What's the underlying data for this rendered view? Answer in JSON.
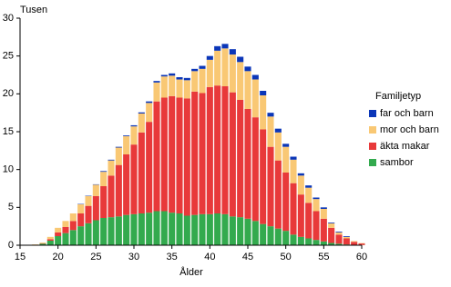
{
  "chart_data": {
    "type": "stacked-bar",
    "y_label": "Tusen",
    "x_label": "Ålder",
    "legend_title": "Familjetyp",
    "x": [
      17,
      18,
      19,
      20,
      21,
      22,
      23,
      24,
      25,
      26,
      27,
      28,
      29,
      30,
      31,
      32,
      33,
      34,
      35,
      36,
      37,
      38,
      39,
      40,
      41,
      42,
      43,
      44,
      45,
      46,
      47,
      48,
      49,
      50,
      51,
      52,
      53,
      54,
      55,
      56,
      57,
      58,
      59,
      60
    ],
    "series": [
      {
        "name": "sambor",
        "color": "#33aa4e",
        "values": [
          0.05,
          0.2,
          0.6,
          1.2,
          1.6,
          2.0,
          2.5,
          2.9,
          3.3,
          3.6,
          3.7,
          3.8,
          4.0,
          4.1,
          4.2,
          4.3,
          4.5,
          4.5,
          4.3,
          4.2,
          3.9,
          4.0,
          4.1,
          4.1,
          4.2,
          4.1,
          3.8,
          3.7,
          3.5,
          3.2,
          2.8,
          2.5,
          2.2,
          1.9,
          1.4,
          1.1,
          0.9,
          0.7,
          0.5,
          0.3,
          0.2,
          0.1,
          0.05,
          0.03
        ]
      },
      {
        "name": "äkta makar",
        "color": "#e8393a",
        "values": [
          0,
          0.05,
          0.2,
          0.5,
          0.8,
          1.2,
          1.7,
          2.3,
          3.2,
          4.2,
          5.5,
          6.8,
          8.0,
          9.2,
          10.7,
          12.0,
          14.5,
          15.0,
          15.4,
          15.3,
          15.5,
          16.3,
          16.0,
          16.8,
          16.9,
          16.9,
          16.4,
          15.5,
          14.5,
          13.7,
          12.5,
          10.5,
          9.0,
          7.7,
          6.8,
          5.6,
          4.7,
          3.8,
          3.0,
          2.0,
          1.2,
          0.8,
          0.4,
          0.2
        ]
      },
      {
        "name": "mor och barn",
        "color": "#f9c874",
        "values": [
          0.05,
          0.1,
          0.3,
          0.6,
          0.8,
          1.0,
          1.2,
          1.3,
          1.5,
          1.9,
          2.0,
          2.3,
          2.4,
          2.4,
          2.5,
          2.5,
          2.5,
          2.8,
          2.7,
          2.4,
          2.4,
          2.7,
          3.2,
          3.6,
          4.6,
          5.0,
          5.0,
          5.0,
          5.0,
          5.0,
          4.5,
          4.0,
          3.7,
          3.4,
          3.1,
          2.5,
          2.0,
          1.6,
          1.3,
          0.6,
          0.3,
          0.2,
          0.1,
          0.05
        ]
      },
      {
        "name": "far och barn",
        "color": "#0b36b8",
        "values": [
          0,
          0,
          0,
          0,
          0,
          0,
          0.05,
          0.05,
          0.05,
          0.1,
          0.1,
          0.1,
          0.1,
          0.15,
          0.15,
          0.2,
          0.2,
          0.2,
          0.3,
          0.3,
          0.3,
          0.3,
          0.4,
          0.5,
          0.6,
          0.6,
          0.7,
          0.7,
          0.6,
          0.6,
          0.6,
          0.5,
          0.5,
          0.4,
          0.4,
          0.3,
          0.3,
          0.2,
          0.2,
          0.1,
          0.1,
          0.1,
          0,
          0
        ]
      }
    ],
    "xlim": [
      15,
      60
    ],
    "xticks": [
      15,
      20,
      25,
      30,
      35,
      40,
      45,
      50,
      55,
      60
    ],
    "ylim": [
      0,
      30
    ],
    "yticks": [
      0,
      5,
      10,
      15,
      20,
      25,
      30
    ],
    "grid": false
  }
}
